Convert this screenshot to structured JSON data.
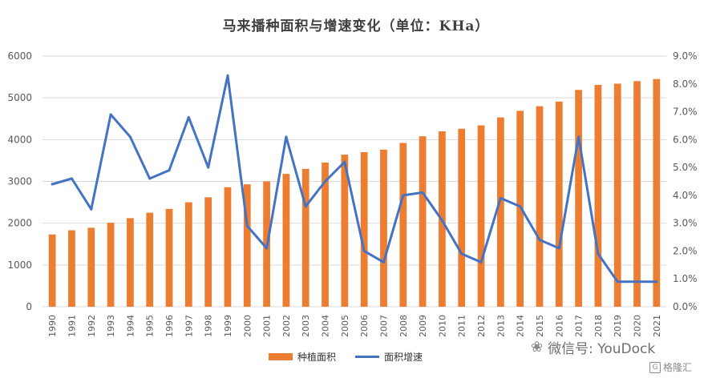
{
  "chart_data": {
    "type": "bar",
    "title": "马来播种面积与增速变化（单位：KHa）",
    "categories": [
      "1990",
      "1991",
      "1992",
      "1993",
      "1994",
      "1995",
      "1996",
      "1997",
      "1998",
      "1999",
      "2000",
      "2001",
      "2002",
      "2003",
      "2004",
      "2005",
      "2006",
      "2007",
      "2008",
      "2009",
      "2010",
      "2011",
      "2012",
      "2013",
      "2014",
      "2015",
      "2016",
      "2017",
      "2018",
      "2019",
      "2020",
      "2021"
    ],
    "series": [
      {
        "name": "种植面积",
        "type": "bar",
        "axis": "left",
        "color": "#ED7D31",
        "values": [
          1730,
          1830,
          1890,
          2010,
          2120,
          2250,
          2340,
          2500,
          2620,
          2860,
          2930,
          3000,
          3180,
          3300,
          3450,
          3640,
          3700,
          3760,
          3920,
          4080,
          4200,
          4260,
          4340,
          4530,
          4690,
          4800,
          4910,
          5190,
          5310,
          5340,
          5400,
          5450
        ]
      },
      {
        "name": "面积增速",
        "type": "line",
        "axis": "right",
        "color": "#4472C4",
        "values": [
          4.4,
          4.6,
          3.5,
          6.9,
          6.1,
          4.6,
          4.9,
          6.8,
          5.0,
          8.3,
          2.9,
          2.1,
          6.1,
          3.6,
          4.5,
          5.2,
          2.0,
          1.6,
          4.0,
          4.1,
          3.1,
          1.9,
          1.6,
          3.9,
          3.6,
          2.4,
          2.1,
          6.1,
          1.9,
          0.9,
          0.9,
          0.9
        ]
      }
    ],
    "ylim": [
      0,
      6000
    ],
    "y_ticks": [
      "0",
      "1000",
      "2000",
      "3000",
      "4000",
      "5000",
      "6000"
    ],
    "y2lim": [
      0,
      9
    ],
    "y2_ticks": [
      "0.0%",
      "1.0%",
      "2.0%",
      "3.0%",
      "4.0%",
      "5.0%",
      "6.0%",
      "7.0%",
      "8.0%",
      "9.0%"
    ],
    "grid": true,
    "legend_position": "bottom"
  },
  "legend": {
    "bar_label": "种植面积",
    "line_label": "面积增速"
  },
  "watermark": {
    "text": "微信号: YouDock",
    "sub": "格隆汇",
    "logo": "G"
  }
}
